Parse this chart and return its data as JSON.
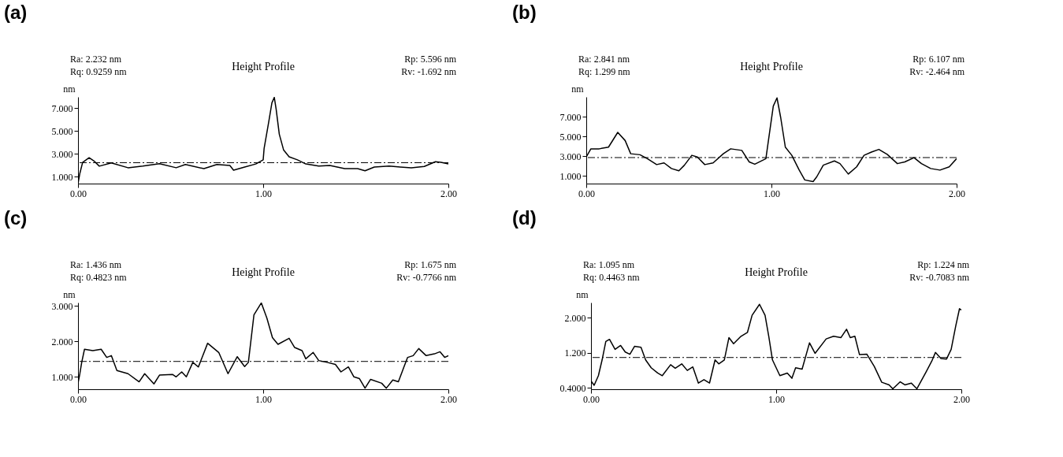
{
  "chart_data": [
    {
      "type": "line",
      "title": "(a)",
      "subtitle": "Height Profile",
      "ylabel": "nm",
      "annotations": [
        "Ra: 2.232 nm",
        "Rq: 0.9259 nm",
        "Rp: 5.596 nm",
        "Rv: -1.692 nm"
      ],
      "x": [
        0,
        0.01,
        0.025,
        0.06,
        0.085,
        0.115,
        0.18,
        0.27,
        0.35,
        0.44,
        0.53,
        0.58,
        0.68,
        0.75,
        0.82,
        0.84,
        0.9,
        0.96,
        1.0,
        1.005,
        1.03,
        1.047,
        1.06,
        1.07,
        1.087,
        1.11,
        1.14,
        1.185,
        1.23,
        1.3,
        1.36,
        1.44,
        1.51,
        1.55,
        1.6,
        1.68,
        1.74,
        1.8,
        1.87,
        1.93,
        1.96,
        2.0
      ],
      "series": [
        {
          "color": "#000000",
          "values": [
            0.4,
            1.3,
            2.26,
            2.67,
            2.4,
            1.93,
            2.21,
            1.79,
            1.93,
            2.15,
            1.79,
            2.07,
            1.71,
            2.07,
            1.99,
            1.58,
            1.85,
            2.12,
            2.48,
            3.49,
            5.82,
            7.47,
            7.96,
            6.92,
            4.73,
            3.36,
            2.75,
            2.48,
            2.12,
            1.93,
            1.99,
            1.71,
            1.71,
            1.52,
            1.85,
            1.93,
            1.85,
            1.79,
            1.9,
            2.32,
            2.26,
            2.12
          ]
        }
      ],
      "xlim": [
        0,
        2
      ],
      "xticks": [
        {
          "value": 0,
          "label": "0.00"
        },
        {
          "value": 1,
          "label": "1.00"
        },
        {
          "value": 2,
          "label": "2.00"
        }
      ],
      "ylim": [
        0.4,
        8.0
      ],
      "yticks": [
        {
          "value": 1,
          "label": "1.000"
        },
        {
          "value": 3,
          "label": "3.000"
        },
        {
          "value": 5,
          "label": "5.000"
        },
        {
          "value": 7,
          "label": "7.000"
        }
      ],
      "ref_lines": [
        {
          "axis": "y",
          "value": 2.232,
          "color": "#000000",
          "line_style": "dashed"
        }
      ],
      "grid": false,
      "line_style": "solid"
    },
    {
      "type": "line",
      "title": "(b)",
      "subtitle": "Height Profile",
      "ylabel": "nm",
      "annotations": [
        "Ra: 2.841 nm",
        "Rq: 1.299 nm",
        "Rp: 6.107 nm",
        "Rv: -2.464 nm"
      ],
      "x": [
        0,
        0.025,
        0.07,
        0.12,
        0.17,
        0.21,
        0.24,
        0.29,
        0.33,
        0.38,
        0.42,
        0.46,
        0.5,
        0.53,
        0.57,
        0.6,
        0.64,
        0.685,
        0.74,
        0.78,
        0.84,
        0.88,
        0.91,
        0.97,
        0.98,
        1.01,
        1.03,
        1.05,
        1.075,
        1.11,
        1.15,
        1.18,
        1.225,
        1.245,
        1.28,
        1.34,
        1.37,
        1.415,
        1.46,
        1.5,
        1.54,
        1.58,
        1.625,
        1.68,
        1.72,
        1.77,
        1.81,
        1.86,
        1.91,
        1.96,
        2.0
      ],
      "series": [
        {
          "color": "#000000",
          "values": [
            2.9,
            3.73,
            3.73,
            3.9,
            5.4,
            4.57,
            3.23,
            3.13,
            2.73,
            2.13,
            2.3,
            1.73,
            1.5,
            2.07,
            3.07,
            2.9,
            2.13,
            2.3,
            3.23,
            3.73,
            3.57,
            2.4,
            2.17,
            2.73,
            4.07,
            8.07,
            8.9,
            6.9,
            3.9,
            3.07,
            1.57,
            0.57,
            0.4,
            0.9,
            2.07,
            2.5,
            2.23,
            1.17,
            1.9,
            3.07,
            3.4,
            3.67,
            3.17,
            2.23,
            2.4,
            2.83,
            2.23,
            1.73,
            1.57,
            1.9,
            2.73
          ]
        }
      ],
      "xlim": [
        0,
        2
      ],
      "xticks": [
        {
          "value": 0,
          "label": "0.00"
        },
        {
          "value": 1,
          "label": "1.00"
        },
        {
          "value": 2,
          "label": "2.00"
        }
      ],
      "ylim": [
        0.2,
        9.0
      ],
      "yticks": [
        {
          "value": 1,
          "label": "1.000"
        },
        {
          "value": 3,
          "label": "3.000"
        },
        {
          "value": 5,
          "label": "5.000"
        },
        {
          "value": 7,
          "label": "7.000"
        }
      ],
      "ref_lines": [
        {
          "axis": "y",
          "value": 2.841,
          "color": "#000000",
          "line_style": "dashed"
        }
      ],
      "grid": false,
      "line_style": "solid"
    },
    {
      "type": "line",
      "title": "(c)",
      "subtitle": "Height Profile",
      "ylabel": "nm",
      "annotations": [
        "Ra: 1.436 nm",
        "Rq: 0.4823 nm",
        "Rp: 1.675 nm",
        "Rv: -0.7766 nm"
      ],
      "x": [
        0,
        0.01,
        0.02,
        0.035,
        0.08,
        0.125,
        0.155,
        0.18,
        0.21,
        0.27,
        0.33,
        0.36,
        0.41,
        0.44,
        0.51,
        0.53,
        0.56,
        0.585,
        0.62,
        0.65,
        0.7,
        0.76,
        0.81,
        0.86,
        0.9,
        0.92,
        0.95,
        0.99,
        1.02,
        1.05,
        1.08,
        1.14,
        1.17,
        1.21,
        1.23,
        1.27,
        1.3,
        1.345,
        1.39,
        1.42,
        1.46,
        1.49,
        1.52,
        1.55,
        1.58,
        1.64,
        1.665,
        1.7,
        1.73,
        1.76,
        1.78,
        1.81,
        1.84,
        1.88,
        1.925,
        1.955,
        1.98,
        2.0
      ],
      "series": [
        {
          "color": "#000000",
          "values": [
            0.82,
            1.09,
            1.41,
            1.78,
            1.74,
            1.78,
            1.55,
            1.6,
            1.18,
            1.09,
            0.86,
            1.09,
            0.8,
            1.05,
            1.07,
            1.0,
            1.14,
            1.0,
            1.41,
            1.28,
            1.95,
            1.69,
            1.09,
            1.57,
            1.29,
            1.41,
            2.75,
            3.09,
            2.66,
            2.11,
            1.92,
            2.09,
            1.83,
            1.74,
            1.51,
            1.69,
            1.46,
            1.41,
            1.35,
            1.14,
            1.28,
            1.0,
            0.95,
            0.68,
            0.93,
            0.82,
            0.68,
            0.91,
            0.86,
            1.28,
            1.55,
            1.6,
            1.8,
            1.6,
            1.65,
            1.71,
            1.55,
            1.6
          ]
        }
      ],
      "xlim": [
        0,
        2
      ],
      "xticks": [
        {
          "value": 0,
          "label": "0.00"
        },
        {
          "value": 1,
          "label": "1.00"
        },
        {
          "value": 2,
          "label": "2.00"
        }
      ],
      "ylim": [
        0.65,
        3.1
      ],
      "yticks": [
        {
          "value": 1,
          "label": "1.000"
        },
        {
          "value": 2,
          "label": "2.000"
        },
        {
          "value": 3,
          "label": "3.000"
        }
      ],
      "ref_lines": [
        {
          "axis": "y",
          "value": 1.436,
          "color": "#000000",
          "line_style": "dashed"
        }
      ],
      "grid": false,
      "line_style": "solid"
    },
    {
      "type": "line",
      "title": "(d)",
      "subtitle": "Height Profile",
      "ylabel": "nm",
      "annotations": [
        "Ra: 1.095 nm",
        "Rq: 0.4463 nm",
        "Rp: 1.224 nm",
        "Rv: -0.7083 nm"
      ],
      "x": [
        0,
        0.017,
        0.04,
        0.06,
        0.08,
        0.1,
        0.13,
        0.16,
        0.185,
        0.21,
        0.235,
        0.27,
        0.295,
        0.325,
        0.36,
        0.385,
        0.43,
        0.455,
        0.49,
        0.52,
        0.55,
        0.58,
        0.61,
        0.64,
        0.67,
        0.69,
        0.72,
        0.745,
        0.77,
        0.81,
        0.845,
        0.87,
        0.91,
        0.94,
        0.96,
        0.98,
        1.02,
        1.06,
        1.085,
        1.105,
        1.14,
        1.18,
        1.21,
        1.27,
        1.31,
        1.35,
        1.38,
        1.4,
        1.425,
        1.45,
        1.49,
        1.53,
        1.57,
        1.61,
        1.63,
        1.67,
        1.695,
        1.73,
        1.76,
        1.81,
        1.84,
        1.86,
        1.89,
        1.92,
        1.945,
        1.97,
        1.99,
        2.0
      ],
      "series": [
        {
          "color": "#000000",
          "values": [
            0.56,
            0.46,
            0.68,
            1.04,
            1.46,
            1.51,
            1.28,
            1.37,
            1.22,
            1.17,
            1.35,
            1.33,
            1.04,
            0.86,
            0.74,
            0.68,
            0.93,
            0.85,
            0.95,
            0.8,
            0.88,
            0.51,
            0.59,
            0.51,
            1.04,
            0.95,
            1.04,
            1.55,
            1.41,
            1.58,
            1.67,
            2.06,
            2.31,
            2.06,
            1.58,
            1.04,
            0.68,
            0.74,
            0.62,
            0.86,
            0.83,
            1.43,
            1.19,
            1.52,
            1.58,
            1.55,
            1.74,
            1.55,
            1.58,
            1.16,
            1.17,
            0.89,
            0.53,
            0.47,
            0.38,
            0.54,
            0.47,
            0.51,
            0.38,
            0.77,
            1.01,
            1.21,
            1.07,
            1.06,
            1.28,
            1.82,
            2.21,
            2.18
          ]
        }
      ],
      "xlim": [
        0,
        2
      ],
      "xticks": [
        {
          "value": 0,
          "label": "0.00"
        },
        {
          "value": 1,
          "label": "1.00"
        },
        {
          "value": 2,
          "label": "2.00"
        }
      ],
      "ylim": [
        0.37,
        2.35
      ],
      "yticks": [
        {
          "value": 0.4,
          "label": "0.4000"
        },
        {
          "value": 1.2,
          "label": "1.200"
        },
        {
          "value": 2,
          "label": "2.000"
        }
      ],
      "ref_lines": [
        {
          "axis": "y",
          "value": 1.095,
          "color": "#000000",
          "line_style": "dashed"
        }
      ],
      "grid": false,
      "line_style": "solid"
    }
  ]
}
